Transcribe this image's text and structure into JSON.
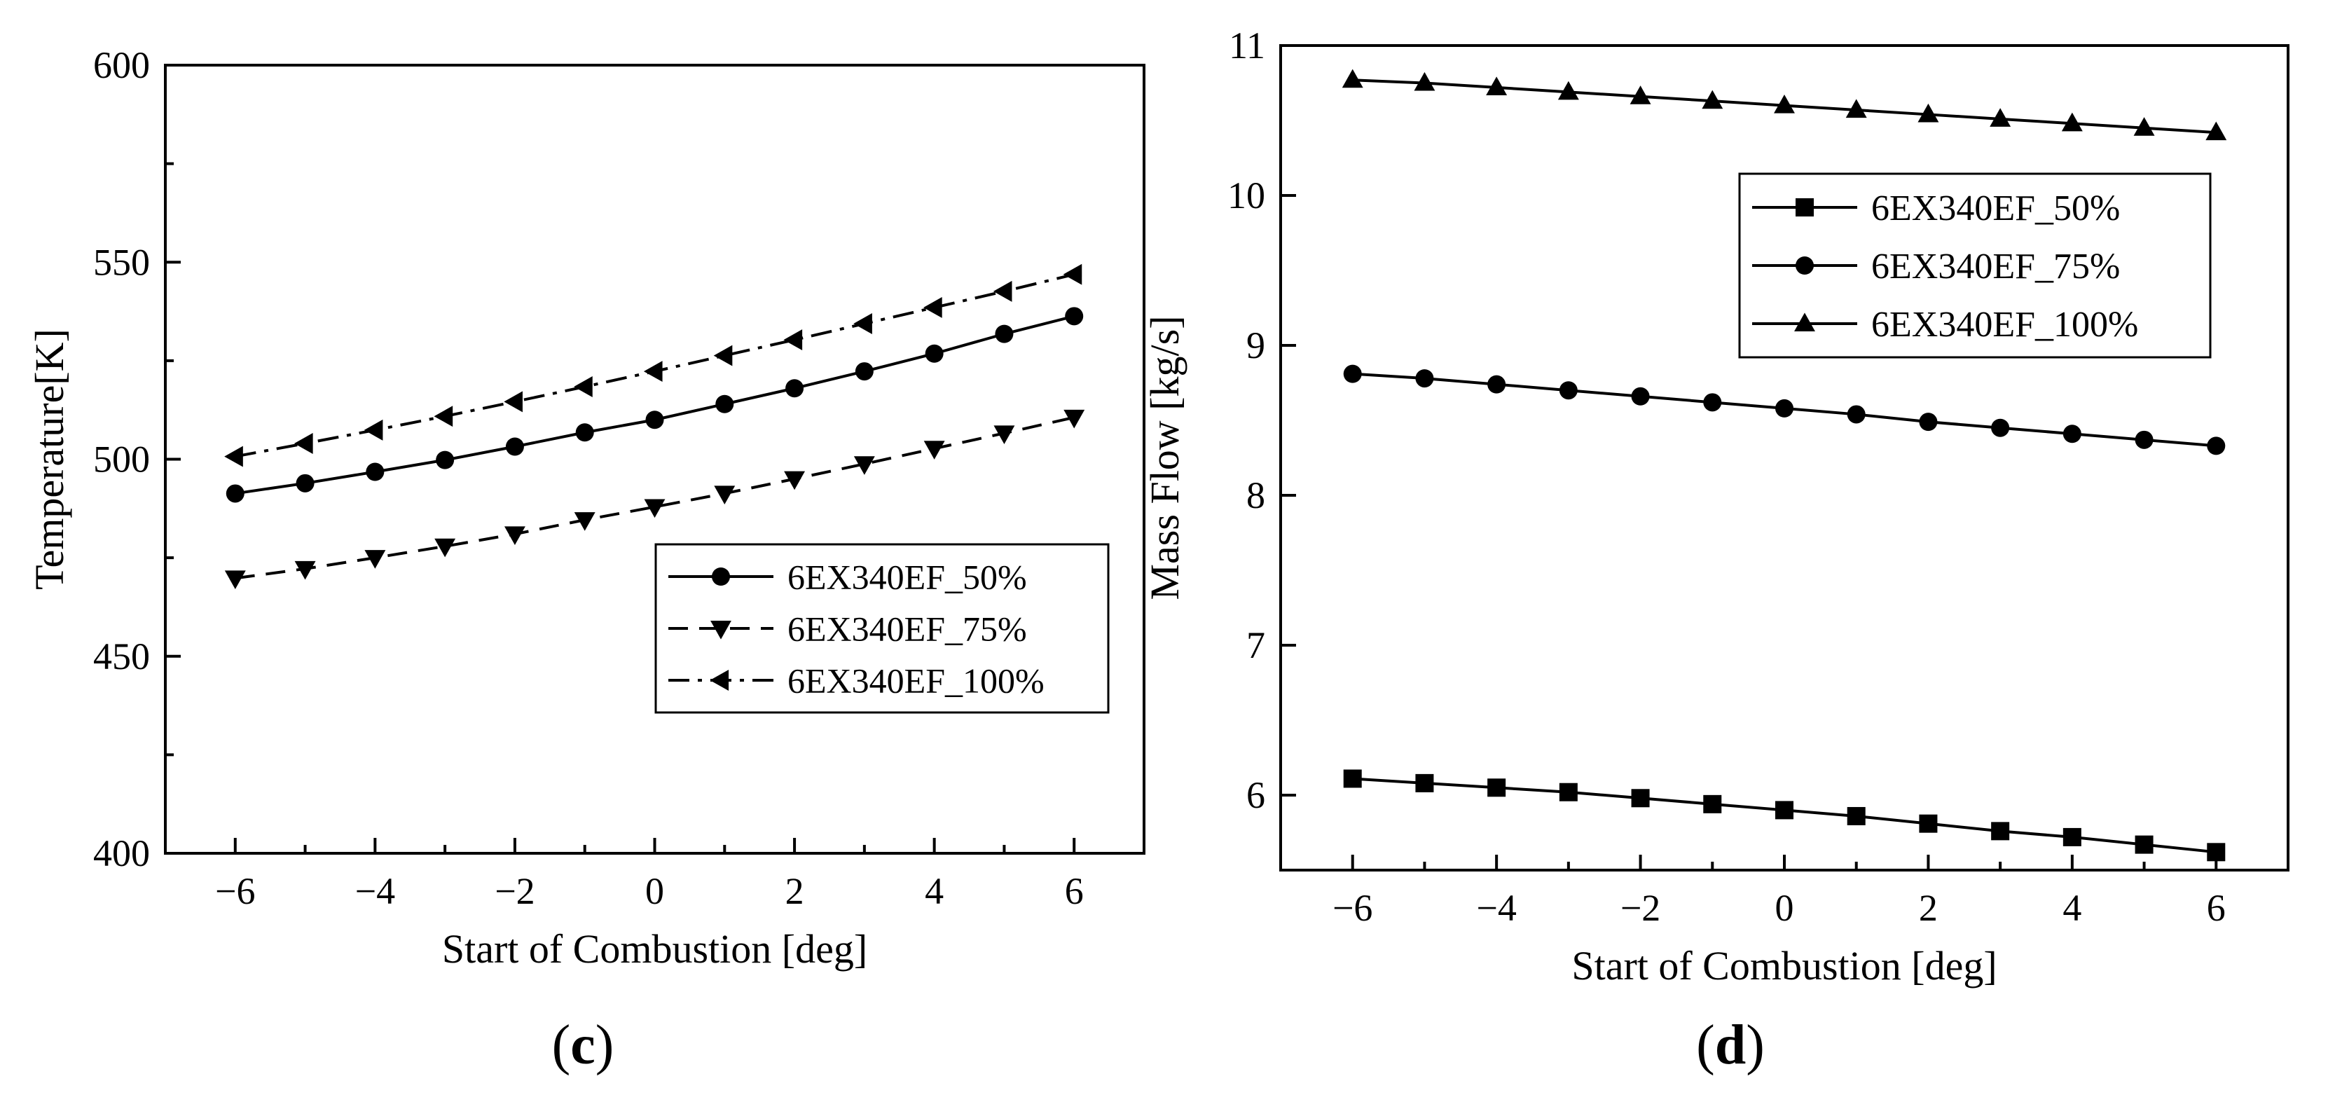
{
  "chart_data": [
    {
      "type": "line",
      "panel_label_open": "(",
      "panel_label_letter": "c",
      "panel_label_close": ")",
      "xlabel": "Start of Combustion [deg]",
      "ylabel": "Temperature[K]",
      "xlim": [
        -7,
        7
      ],
      "ylim": [
        400,
        600
      ],
      "x_ticks": [
        -6,
        -4,
        -2,
        0,
        2,
        4,
        6
      ],
      "x_tick_labels": [
        "−6",
        "−4",
        "−2",
        "0",
        "2",
        "4",
        "6"
      ],
      "y_ticks": [
        400,
        450,
        500,
        550,
        600
      ],
      "y_tick_labels": [
        "400",
        "450",
        "500",
        "550",
        "600"
      ],
      "legend_position": "lower-right",
      "x": [
        -6,
        -5,
        -4,
        -3,
        -2,
        -1,
        0,
        1,
        2,
        3,
        4,
        5,
        6
      ],
      "series": [
        {
          "name": "6EX340EF_50%",
          "marker": "circle",
          "line_style": "solid",
          "values": [
            491.3,
            493.9,
            496.8,
            499.8,
            503.2,
            506.8,
            510.0,
            514.0,
            518.0,
            522.3,
            526.8,
            531.8,
            536.3
          ]
        },
        {
          "name": "6EX340EF_75%",
          "marker": "triangle-down",
          "line_style": "dashed",
          "values": [
            469.8,
            472.2,
            475.0,
            477.9,
            481.0,
            484.6,
            487.9,
            491.3,
            495.0,
            498.8,
            502.7,
            506.6,
            510.6
          ]
        },
        {
          "name": "6EX340EF_100%",
          "marker": "triangle-left",
          "line_style": "dashdot",
          "values": [
            500.7,
            504.0,
            507.4,
            510.9,
            514.6,
            518.4,
            522.3,
            526.3,
            530.3,
            534.4,
            538.5,
            542.6,
            546.9
          ]
        }
      ]
    },
    {
      "type": "line",
      "panel_label_open": "(",
      "panel_label_letter": "d",
      "panel_label_close": ")",
      "xlabel": "Start of Combustion [deg]",
      "ylabel": "Mass Flow [kg/s]",
      "xlim": [
        -7,
        7
      ],
      "ylim": [
        5.5,
        11
      ],
      "x_ticks": [
        -6,
        -4,
        -2,
        0,
        2,
        4,
        6
      ],
      "x_tick_labels": [
        "−6",
        "−4",
        "−2",
        "0",
        "2",
        "4",
        "6"
      ],
      "y_ticks": [
        6,
        7,
        8,
        9,
        10,
        11
      ],
      "y_tick_labels": [
        "6",
        "7",
        "8",
        "9",
        "10",
        "11"
      ],
      "legend_position": "upper-right",
      "x": [
        -6,
        -5,
        -4,
        -3,
        -2,
        -1,
        0,
        1,
        2,
        3,
        4,
        5,
        6
      ],
      "series": [
        {
          "name": "6EX340EF_50%",
          "marker": "square",
          "line_style": "solid",
          "values": [
            6.11,
            6.08,
            6.05,
            6.02,
            5.98,
            5.94,
            5.9,
            5.86,
            5.81,
            5.76,
            5.72,
            5.67,
            5.62
          ]
        },
        {
          "name": "6EX340EF_75%",
          "marker": "circle",
          "line_style": "solid",
          "values": [
            8.81,
            8.78,
            8.74,
            8.7,
            8.66,
            8.62,
            8.58,
            8.54,
            8.49,
            8.45,
            8.41,
            8.37,
            8.33
          ]
        },
        {
          "name": "6EX340EF_100%",
          "marker": "triangle-up",
          "line_style": "solid",
          "values": [
            10.77,
            10.75,
            10.72,
            10.69,
            10.66,
            10.63,
            10.6,
            10.57,
            10.54,
            10.51,
            10.48,
            10.45,
            10.42
          ]
        }
      ]
    }
  ]
}
